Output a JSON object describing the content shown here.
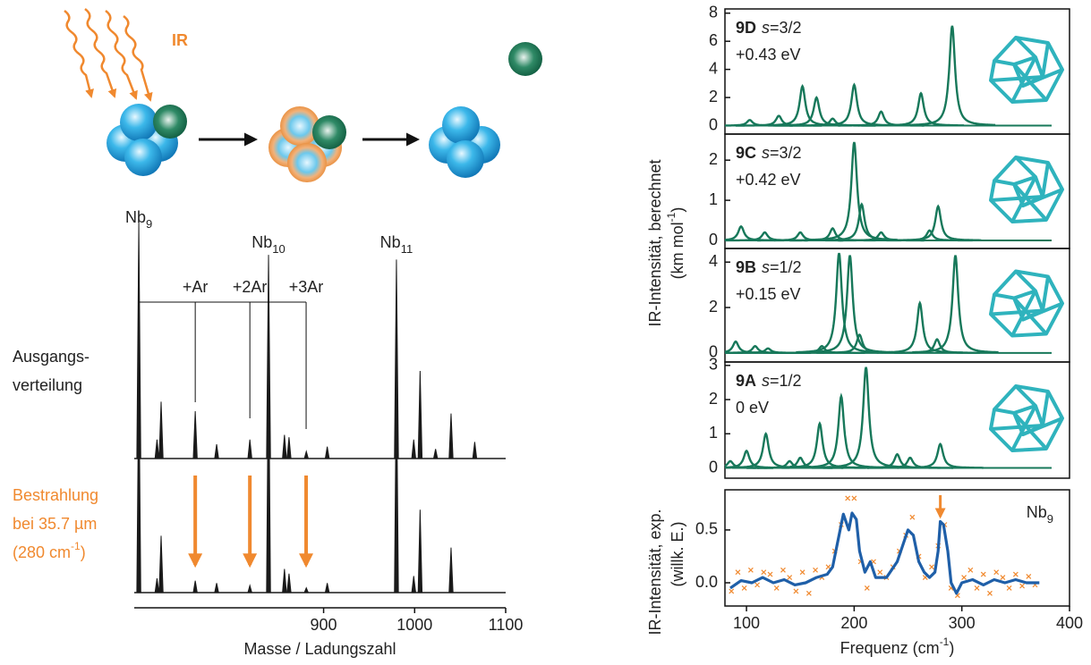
{
  "ir_label": "IR",
  "chart_data": [
    {
      "type": "stick",
      "xlabel": "Masse / Ladungszahl",
      "xlim": [
        692,
        1100
      ],
      "xticks": [
        900,
        1000,
        1100
      ],
      "peak_labels": [
        {
          "base": "Nb",
          "sub": "9",
          "x": 697
        },
        {
          "base": "Nb",
          "sub": "10",
          "x": 839.5
        },
        {
          "base": "Nb",
          "sub": "11",
          "x": 980
        }
      ],
      "adducts": [
        {
          "label": "+Ar",
          "x": 759
        },
        {
          "label": "+2Ar",
          "x": 819
        },
        {
          "label": "+3Ar",
          "x": 880.8
        }
      ],
      "series": [
        {
          "name_lines": [
            "Ausgangs-",
            "verteilung"
          ],
          "color": "#1a1a1a",
          "x": [
            697,
            717,
            721.5,
            759,
            782.5,
            819,
            839.5,
            857,
            862,
            881,
            904,
            980,
            999,
            1006,
            1023,
            1040,
            1066
          ],
          "values": [
            1.0,
            0.08,
            0.24,
            0.2,
            0.06,
            0.08,
            0.86,
            0.1,
            0.09,
            0.03,
            0.05,
            0.84,
            0.08,
            0.37,
            0.04,
            0.19,
            0.07
          ]
        },
        {
          "name_lines": [
            "Bestrahlung",
            "bei 35.7 µm",
            {
              "text": "(280 cm",
              "sup": "-1",
              "end": ")"
            }
          ],
          "color": "#1a1a1a",
          "label_color": "#f0892f",
          "x": [
            697,
            717,
            721.5,
            759,
            782.5,
            819,
            839.5,
            857,
            862,
            881,
            904,
            980,
            999,
            1006,
            1040
          ],
          "values": [
            0.95,
            0.06,
            0.24,
            0.05,
            0.04,
            0.03,
            1.05,
            0.1,
            0.08,
            0.02,
            0.04,
            0.95,
            0.07,
            0.35,
            0.19
          ]
        }
      ]
    },
    {
      "type": "spectrum",
      "isomer": "9D",
      "spin_symbol": "s",
      "spin_value": "=3/2",
      "energy": "+0.43 eV",
      "ylabel": "IR-Intensität, berechnet",
      "ylabel_unit": {
        "text": "(km mol",
        "sup": "-1",
        "end": ")"
      },
      "xlim": [
        80,
        400
      ],
      "ylim": [
        -0.6,
        8.3
      ],
      "yticks": [
        0,
        2,
        4,
        6,
        8
      ],
      "color": "#17785a",
      "x": [
        103,
        130,
        152,
        165,
        180,
        200,
        225,
        262,
        291
      ],
      "values": [
        0.4,
        0.7,
        2.8,
        2.0,
        0.5,
        2.9,
        1.0,
        2.3,
        7.1
      ]
    },
    {
      "type": "spectrum",
      "isomer": "9C",
      "spin_symbol": "s",
      "spin_value": "=3/2",
      "energy": "+0.42 eV",
      "xlim": [
        80,
        400
      ],
      "ylim": [
        -0.2,
        2.65
      ],
      "yticks": [
        0,
        1,
        2
      ],
      "color": "#17785a",
      "x": [
        95,
        117,
        150,
        180,
        200,
        207,
        225,
        270,
        278
      ],
      "values": [
        0.35,
        0.2,
        0.2,
        0.3,
        2.45,
        0.9,
        0.2,
        0.25,
        0.85
      ]
    },
    {
      "type": "spectrum",
      "isomer": "9B",
      "spin_symbol": "s",
      "spin_value": "=1/2",
      "energy": "+0.15 eV",
      "xlim": [
        80,
        400
      ],
      "ylim": [
        -0.4,
        4.6
      ],
      "yticks": [
        0,
        2,
        4
      ],
      "color": "#17785a",
      "x": [
        90,
        108,
        120,
        170,
        186,
        196,
        205,
        261,
        277,
        294
      ],
      "values": [
        0.5,
        0.3,
        0.2,
        0.3,
        4.4,
        4.3,
        0.8,
        2.2,
        0.6,
        4.3
      ]
    },
    {
      "type": "spectrum",
      "isomer": "9A",
      "spin_symbol": "s",
      "spin_value": "=1/2",
      "energy": "0 eV",
      "xlim": [
        80,
        400
      ],
      "ylim": [
        -0.3,
        3.1
      ],
      "yticks": [
        0,
        1,
        2,
        3
      ],
      "color": "#17785a",
      "x": [
        85,
        100,
        118,
        140,
        150,
        168,
        188,
        211,
        240,
        252,
        280
      ],
      "values": [
        0.2,
        0.5,
        1.0,
        0.2,
        0.3,
        1.3,
        2.1,
        2.95,
        0.4,
        0.3,
        0.7
      ]
    },
    {
      "type": "line",
      "label": {
        "base": "Nb",
        "sub": "9"
      },
      "arrow_x": 280,
      "ylabel": "IR-Intensität, exp.",
      "ylabel_unit": "(willk. E.)",
      "xlabel": {
        "text": "Frequenz (cm",
        "sup": "-1",
        "end": ")"
      },
      "xlim": [
        80,
        400
      ],
      "xticks": [
        100,
        200,
        300,
        400
      ],
      "ylim": [
        -0.22,
        0.88
      ],
      "yticks": [
        {
          "value": 0,
          "label": "0.0"
        },
        {
          "value": 0.5,
          "label": "0.5"
        }
      ],
      "series": [
        {
          "kind": "scatter",
          "color": "#f0892f",
          "x": [
            86,
            92,
            98,
            104,
            110,
            116,
            122,
            128,
            134,
            140,
            146,
            152,
            158,
            164,
            170,
            176,
            182,
            188,
            194,
            200,
            206,
            212,
            218,
            224,
            230,
            236,
            242,
            248,
            254,
            260,
            266,
            272,
            278,
            284,
            290,
            296,
            302,
            308,
            314,
            320,
            326,
            332,
            338,
            344,
            350,
            356,
            362,
            368
          ],
          "values": [
            -0.08,
            0.1,
            -0.05,
            0.12,
            -0.02,
            0.1,
            0.08,
            -0.05,
            0.12,
            0.05,
            -0.08,
            0.1,
            -0.1,
            0.12,
            0.05,
            0.15,
            0.3,
            0.55,
            0.8,
            0.8,
            0.2,
            -0.05,
            0.2,
            0.1,
            0.05,
            0.15,
            0.3,
            0.45,
            0.62,
            0.25,
            0.05,
            0.15,
            0.35,
            0.55,
            -0.05,
            -0.12,
            0.05,
            0.12,
            -0.05,
            0.08,
            -0.1,
            0.1,
            0.05,
            -0.05,
            0.08,
            -0.03,
            0.06,
            -0.02
          ]
        },
        {
          "kind": "line",
          "color": "#1f5fa8",
          "x": [
            85,
            95,
            105,
            115,
            125,
            135,
            145,
            155,
            165,
            175,
            180,
            185,
            190,
            195,
            198,
            202,
            205,
            210,
            215,
            220,
            230,
            240,
            245,
            250,
            255,
            260,
            265,
            270,
            275,
            278,
            280,
            283,
            287,
            290,
            295,
            300,
            310,
            320,
            330,
            340,
            350,
            360,
            372
          ],
          "values": [
            -0.05,
            0.02,
            0.0,
            0.05,
            0.0,
            0.03,
            -0.02,
            0.0,
            0.05,
            0.08,
            0.15,
            0.4,
            0.65,
            0.5,
            0.66,
            0.6,
            0.3,
            0.1,
            0.2,
            0.05,
            0.05,
            0.2,
            0.35,
            0.5,
            0.45,
            0.2,
            0.1,
            0.05,
            0.1,
            0.3,
            0.58,
            0.55,
            0.3,
            0.0,
            -0.1,
            0.0,
            0.03,
            -0.02,
            0.03,
            0.0,
            0.03,
            0.0,
            0.0
          ]
        }
      ]
    }
  ]
}
